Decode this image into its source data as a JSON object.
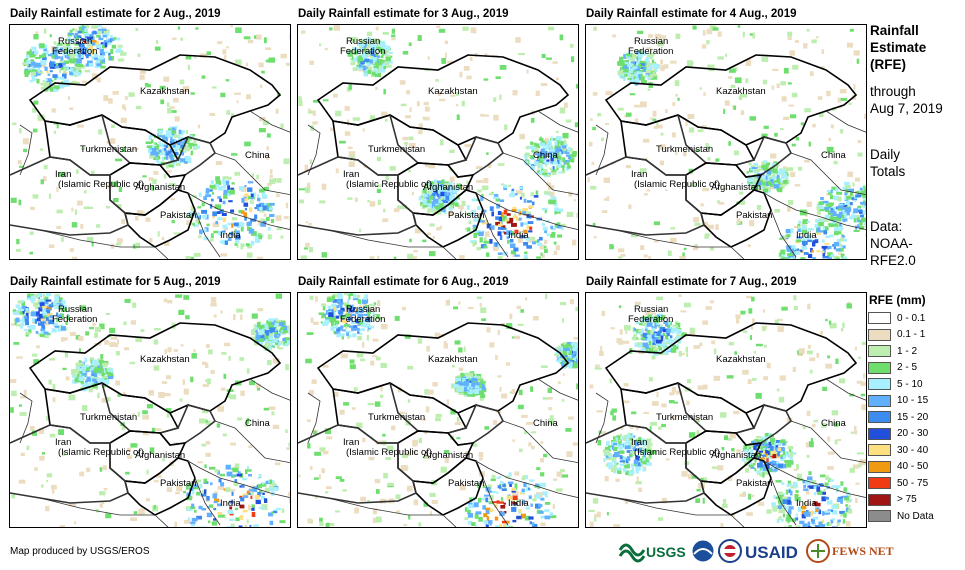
{
  "panels": [
    {
      "title": "Daily Rainfall estimate for 2 Aug., 2019"
    },
    {
      "title": "Daily Rainfall estimate for 3 Aug., 2019"
    },
    {
      "title": "Daily Rainfall estimate for 4 Aug., 2019"
    },
    {
      "title": "Daily Rainfall estimate for 5 Aug., 2019"
    },
    {
      "title": "Daily Rainfall estimate for 6 Aug., 2019"
    },
    {
      "title": "Daily Rainfall estimate for 7 Aug., 2019"
    }
  ],
  "labels": {
    "russia_1": "Russian",
    "russia_2": "Federation",
    "kazakhstan": "Kazakhstan",
    "turkmenistan": "Turkmenistan",
    "china": "China",
    "iran_1": "Iran",
    "iran_2": "(Islamic Republic of)",
    "afghanistan": "Afghanistan",
    "pakistan": "Pakistan",
    "india": "India"
  },
  "sidebar": {
    "title_1": "Rainfall",
    "title_2": "Estimate",
    "title_3": "(RFE)",
    "through_1": "through",
    "through_2": "Aug 7, 2019",
    "daily_1": "Daily",
    "daily_2": "Totals",
    "data_1": "Data:",
    "data_2": "NOAA-",
    "data_3": "RFE2.0"
  },
  "legend": {
    "title": "RFE (mm)",
    "items": [
      {
        "label": "0 - 0.1",
        "color": "#ffffff"
      },
      {
        "label": "0.1 - 1",
        "color": "#ecdcc0"
      },
      {
        "label": "1 - 2",
        "color": "#bdeeb0"
      },
      {
        "label": "2 - 5",
        "color": "#6edf6e"
      },
      {
        "label": "5 - 10",
        "color": "#a8f0ff"
      },
      {
        "label": "10 - 15",
        "color": "#60b0ff"
      },
      {
        "label": "15 - 20",
        "color": "#3c8cf0"
      },
      {
        "label": "20 - 30",
        "color": "#2050dc"
      },
      {
        "label": "30 - 40",
        "color": "#ffe080"
      },
      {
        "label": "40 - 50",
        "color": "#f09a14"
      },
      {
        "label": "50 - 75",
        "color": "#f03c14"
      },
      {
        "label": "> 75",
        "color": "#a01414"
      },
      {
        "label": "No Data",
        "color": "#8c8c8c"
      }
    ]
  },
  "footer": {
    "credit": "Map produced by USGS/EROS",
    "usgs": "USGS",
    "usaid": "USAID",
    "fewsnet": "FEWS NET"
  }
}
